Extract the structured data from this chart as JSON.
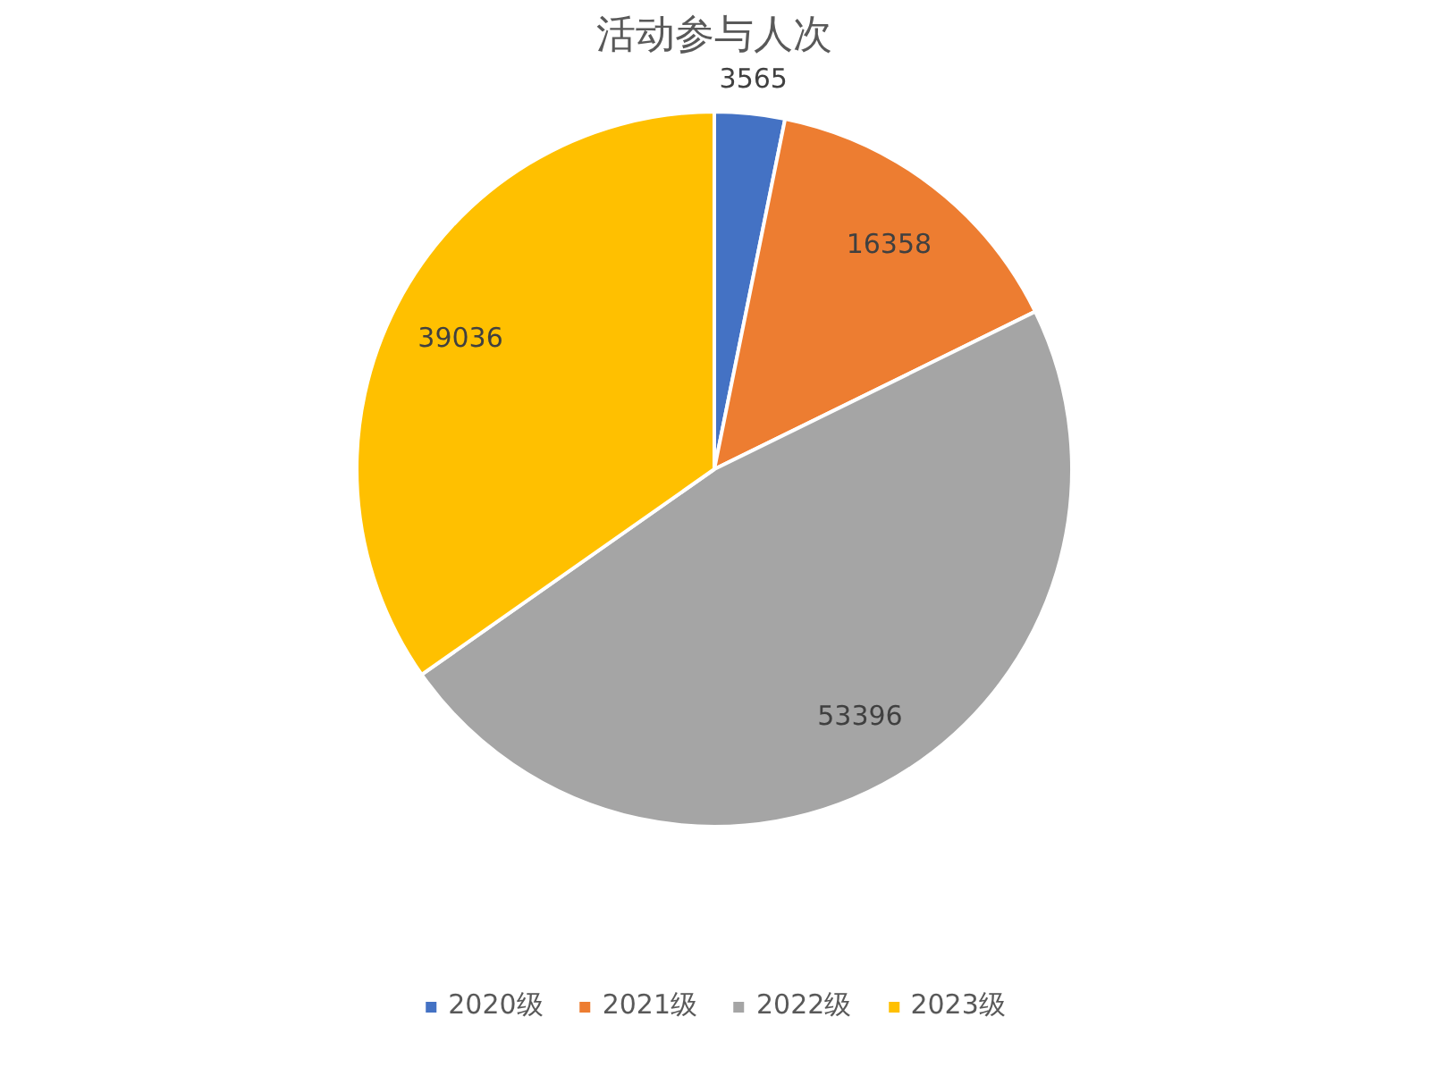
{
  "chart_data": {
    "type": "pie",
    "title": "活动参与人次",
    "categories": [
      "2020级",
      "2021级",
      "2022级",
      "2023级"
    ],
    "values": [
      3565,
      16358,
      53396,
      39036
    ],
    "colors": [
      "#4472c4",
      "#ed7d31",
      "#a5a5a5",
      "#ffc000"
    ],
    "data_labels": true,
    "legend": "bottom"
  }
}
